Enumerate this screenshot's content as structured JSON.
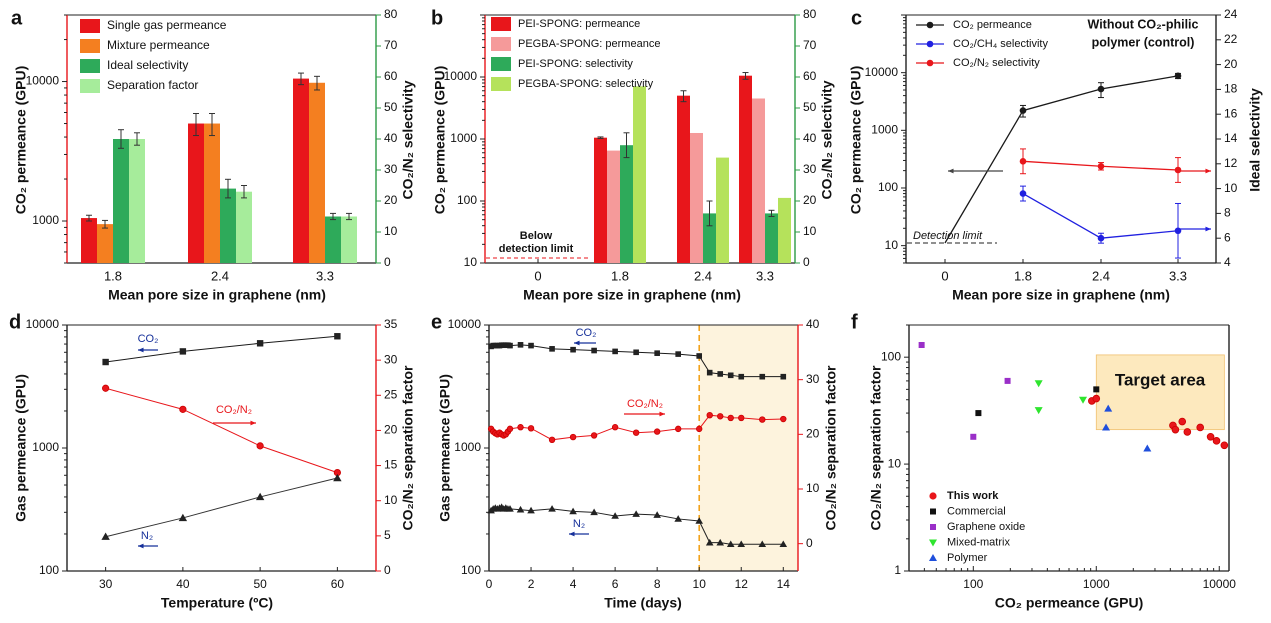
{
  "figure": {
    "panels": [
      "a",
      "b",
      "c",
      "d",
      "e",
      "f"
    ],
    "colors": {
      "red": "#e8161b",
      "orange": "#f47f20",
      "green": "#2eaa5a",
      "lightgreen": "#a6ec9b",
      "pink": "#f59a9a",
      "lime": "#b5e25b",
      "black": "#1a1a1a",
      "blue": "#2020e0",
      "axisgreen": "#2c9a44",
      "axisred": "#e8161b",
      "navy": "#16309a",
      "purple": "#9a2fc8",
      "mmgreen": "#2ee52e",
      "polyblue": "#1f4fdc",
      "target": "#fde9be",
      "orangeline": "#f3a21b"
    }
  },
  "chart_data": [
    {
      "panel": "a",
      "type": "bar",
      "title": "",
      "xlabel": "Mean pore size in graphene (nm)",
      "ylabel": "CO₂ permeance (GPU)",
      "y2label": "CO₂/N₂ selectivity",
      "categories": [
        "1.8",
        "2.4",
        "3.3"
      ],
      "ylim": [
        500,
        30000
      ],
      "ylog": true,
      "yticks": [
        "1000",
        "10000"
      ],
      "y2lim": [
        0,
        80
      ],
      "y2ticks": [
        "0",
        "10",
        "20",
        "30",
        "40",
        "50",
        "60",
        "70",
        "80"
      ],
      "legend_position": "top-left",
      "series": [
        {
          "name": "Single gas permeance",
          "axis": "left",
          "values": [
            1050,
            5000,
            10500
          ],
          "err": [
            50,
            900,
            1000
          ]
        },
        {
          "name": "Mixture permeance",
          "axis": "left",
          "values": [
            950,
            5000,
            9800
          ],
          "err": [
            60,
            900,
            1100
          ]
        },
        {
          "name": "Ideal selectivity",
          "axis": "right",
          "values": [
            40,
            24,
            15
          ],
          "err": [
            3,
            3,
            1
          ]
        },
        {
          "name": "Separation factor",
          "axis": "right",
          "values": [
            40,
            23,
            15
          ],
          "err": [
            2,
            2,
            1
          ]
        }
      ]
    },
    {
      "panel": "b",
      "type": "bar",
      "title": "",
      "xlabel": "Mean pore size in graphene (nm)",
      "ylabel": "CO₂ permeance (GPU)",
      "y2label": "CO₂/N₂ selectivity",
      "categories": [
        "0",
        "1.8",
        "2.4",
        "3.3"
      ],
      "ylim": [
        10,
        100000
      ],
      "ylog": true,
      "yticks": [
        "10",
        "100",
        "1000",
        "10000"
      ],
      "y2lim": [
        0,
        80
      ],
      "y2ticks": [
        "0",
        "10",
        "20",
        "30",
        "40",
        "50",
        "60",
        "70",
        "80"
      ],
      "legend_position": "top-left",
      "annotation": "Below\ndetection limit",
      "series": [
        {
          "name": "PEI-SPONG: permeance",
          "axis": "left",
          "values": [
            null,
            1050,
            5000,
            10500
          ],
          "err": [
            0,
            30,
            1000,
            1300
          ]
        },
        {
          "name": "PEGBA-SPONG: permeance",
          "axis": "left",
          "values": [
            null,
            650,
            1250,
            4500
          ],
          "err": [
            0,
            0,
            0,
            0
          ]
        },
        {
          "name": "PEI-SPONG: selectivity",
          "axis": "right",
          "values": [
            null,
            38,
            16,
            16
          ],
          "err": [
            0,
            4,
            4,
            1
          ]
        },
        {
          "name": "PEGBA-SPONG: selectivity",
          "axis": "right",
          "values": [
            null,
            57,
            34,
            21
          ],
          "err": [
            0,
            0,
            0,
            0
          ]
        }
      ]
    },
    {
      "panel": "c",
      "type": "line",
      "title": "Without CO₂-philic polymer (control)",
      "xlabel": "Mean pore size in graphene (nm)",
      "ylabel": "CO₂ permeance (GPU)",
      "y2label": "Ideal selectivity",
      "categories": [
        "0",
        "1.8",
        "2.4",
        "3.3"
      ],
      "ylim": [
        5,
        100000
      ],
      "ylog": true,
      "yticks": [
        "10",
        "100",
        "1000",
        "10000"
      ],
      "y2lim": [
        4,
        24
      ],
      "y2ticks": [
        "4",
        "6",
        "8",
        "10",
        "12",
        "14",
        "16",
        "18",
        "20",
        "22",
        "24"
      ],
      "annotation": "Detection limit",
      "legend_position": "top-left",
      "series": [
        {
          "name": "CO₂ permeance",
          "axis": "left",
          "values": [
            10,
            2200,
            5200,
            8800
          ],
          "err": [
            0,
            500,
            1500,
            900
          ]
        },
        {
          "name": "CO₂/CH₄ selectivity",
          "axis": "right",
          "values": [
            null,
            9.6,
            6.0,
            6.6
          ],
          "err": [
            0,
            0.6,
            0.4,
            2.2
          ]
        },
        {
          "name": "CO₂/N₂ selectivity",
          "axis": "right",
          "values": [
            null,
            12.2,
            11.8,
            11.5
          ],
          "err": [
            0,
            1.0,
            0.3,
            1.0
          ]
        }
      ]
    },
    {
      "panel": "d",
      "type": "line",
      "title": "",
      "xlabel": "Temperature (ºC)",
      "ylabel": "Gas permeance (GPU)",
      "y2label": "CO₂/N₂ separation factor",
      "x": [
        30,
        40,
        50,
        60
      ],
      "xlim": [
        25,
        65
      ],
      "xticks": [
        "30",
        "40",
        "50",
        "60"
      ],
      "ylim": [
        100,
        10000
      ],
      "ylog": true,
      "yticks": [
        "100",
        "1000",
        "10000"
      ],
      "y2lim": [
        0,
        35
      ],
      "y2ticks": [
        "0",
        "5",
        "10",
        "15",
        "20",
        "25",
        "30",
        "35"
      ],
      "annotations": [
        "CO₂",
        "CO₂/N₂",
        "N₂"
      ],
      "series": [
        {
          "name": "CO₂",
          "axis": "left",
          "values": [
            5000,
            6100,
            7100,
            8100
          ]
        },
        {
          "name": "CO₂/N₂",
          "axis": "right",
          "values": [
            26,
            23,
            17.8,
            14
          ]
        },
        {
          "name": "N₂",
          "axis": "left",
          "values": [
            190,
            270,
            400,
            570
          ]
        }
      ]
    },
    {
      "panel": "e",
      "type": "line",
      "title": "",
      "xlabel": "Time (days)",
      "ylabel": "Gas permeance (GPU)",
      "y2label": "CO₂/N₂ separation factor",
      "xlim": [
        0,
        14.7
      ],
      "xticks": [
        "0",
        "2",
        "4",
        "6",
        "8",
        "10",
        "12",
        "14"
      ],
      "ylim": [
        100,
        10000
      ],
      "ylog": true,
      "yticks": [
        "100",
        "1000",
        "10000"
      ],
      "y2lim": [
        -5,
        40
      ],
      "y2ticks": [
        "0",
        "10",
        "20",
        "30",
        "40"
      ],
      "annotations": [
        "CO₂",
        "CO₂/N₂",
        "N₂"
      ],
      "shaded_from": 10,
      "series": [
        {
          "name": "CO₂",
          "axis": "left",
          "x": [
            0.1,
            0.2,
            0.3,
            0.4,
            0.5,
            0.6,
            0.7,
            0.8,
            0.9,
            1.0,
            1.5,
            2,
            3,
            4,
            5,
            6,
            7,
            8,
            9,
            10,
            10.5,
            11,
            11.5,
            12,
            13,
            14
          ],
          "values": [
            6700,
            6800,
            6800,
            6800,
            6800,
            6850,
            6850,
            6850,
            6850,
            6800,
            6900,
            6800,
            6400,
            6300,
            6200,
            6100,
            6000,
            5900,
            5800,
            5600,
            4100,
            4000,
            3900,
            3800,
            3800,
            3800
          ]
        },
        {
          "name": "CO₂/N₂",
          "axis": "right",
          "x": [
            0.1,
            0.2,
            0.3,
            0.4,
            0.5,
            0.6,
            0.7,
            0.8,
            0.9,
            1.0,
            1.5,
            2,
            3,
            4,
            5,
            6,
            7,
            8,
            9,
            10,
            10.5,
            11,
            11.5,
            12,
            13,
            14
          ],
          "values": [
            21,
            20.5,
            20.2,
            20,
            20.3,
            20,
            19.8,
            20,
            20.5,
            21,
            21.3,
            21.1,
            19,
            19.5,
            19.8,
            21.3,
            20.3,
            20.5,
            21,
            21,
            23.5,
            23.3,
            23,
            23,
            22.7,
            22.8
          ]
        },
        {
          "name": "N₂",
          "axis": "left",
          "x": [
            0.1,
            0.2,
            0.3,
            0.4,
            0.5,
            0.6,
            0.7,
            0.8,
            0.9,
            1.0,
            1.5,
            2,
            3,
            4,
            5,
            6,
            7,
            8,
            9,
            10,
            10.5,
            11,
            11.5,
            12,
            13,
            14
          ],
          "values": [
            310,
            320,
            325,
            320,
            325,
            330,
            320,
            325,
            320,
            320,
            315,
            310,
            320,
            305,
            300,
            280,
            290,
            285,
            265,
            255,
            170,
            170,
            165,
            165,
            165,
            165
          ]
        }
      ]
    },
    {
      "panel": "f",
      "type": "scatter",
      "title": "",
      "xlabel": "CO₂ permeance (GPU)",
      "ylabel": "CO₂/N₂ separation factor",
      "xlim": [
        30,
        12000
      ],
      "xlog": true,
      "xticks": [
        "100",
        "1000",
        "10000"
      ],
      "ylim": [
        1,
        200
      ],
      "ylog": true,
      "yticks": [
        "1",
        "10",
        "100"
      ],
      "annotation": "Target area",
      "legend_position": "bottom-left",
      "series": [
        {
          "name": "This work",
          "x": [
            4200,
            4400,
            5000,
            5500,
            7000,
            8500,
            9500,
            11000,
            920,
            1000
          ],
          "values": [
            23,
            21,
            25,
            20,
            22,
            18,
            16.5,
            15,
            39,
            41
          ]
        },
        {
          "name": "Commercial",
          "x": [
            110,
            1000
          ],
          "values": [
            30,
            50
          ]
        },
        {
          "name": "Graphene oxide",
          "x": [
            38,
            100,
            190
          ],
          "values": [
            130,
            18,
            60
          ]
        },
        {
          "name": "Mixed-matrix",
          "x": [
            340,
            340,
            780
          ],
          "values": [
            57,
            32,
            40
          ]
        },
        {
          "name": "Polymer",
          "x": [
            1250,
            1200,
            2600
          ],
          "values": [
            33,
            22,
            14
          ]
        }
      ]
    }
  ]
}
